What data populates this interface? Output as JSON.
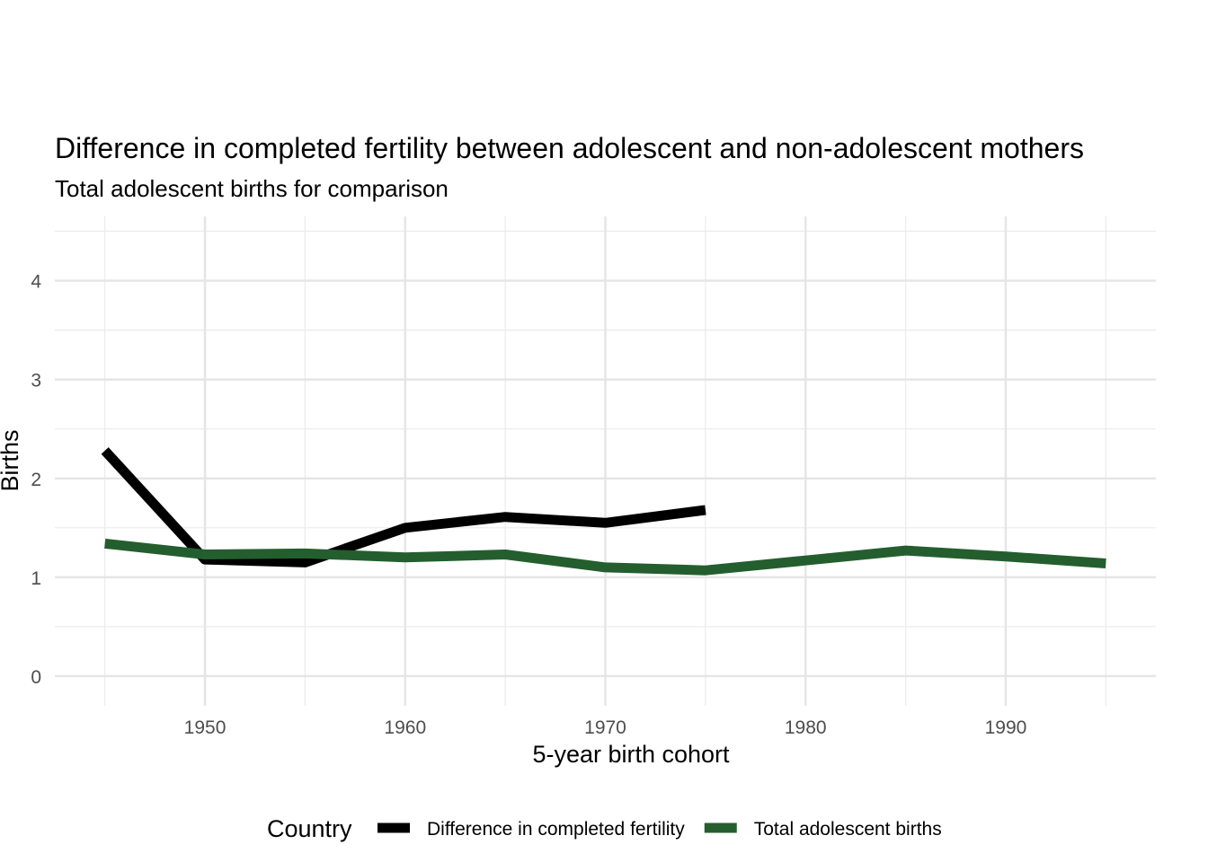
{
  "chart_data": {
    "type": "line",
    "title": "Difference in completed fertility between adolescent and non-adolescent mothers",
    "subtitle": "Total adolescent births for comparison",
    "xlabel": "5-year birth cohort",
    "ylabel": "Births",
    "xlim": [
      1942.5,
      1997.5
    ],
    "ylim": [
      -0.3,
      4.65
    ],
    "x_ticks": [
      1950,
      1960,
      1970,
      1980,
      1990
    ],
    "y_ticks": [
      0,
      1,
      2,
      3,
      4
    ],
    "grid": true,
    "legend": {
      "title": "Country",
      "position": "bottom"
    },
    "series": [
      {
        "name": "Difference in completed fertility",
        "color": "#000000",
        "x": [
          1945,
          1950,
          1955,
          1960,
          1965,
          1970,
          1975
        ],
        "y": [
          2.28,
          1.18,
          1.15,
          1.5,
          1.61,
          1.55,
          1.68
        ]
      },
      {
        "name": "Total adolescent births",
        "color": "#245e2e",
        "x": [
          1945,
          1950,
          1955,
          1960,
          1965,
          1970,
          1975,
          1980,
          1985,
          1990,
          1995
        ],
        "y": [
          1.34,
          1.23,
          1.24,
          1.2,
          1.23,
          1.1,
          1.07,
          1.17,
          1.27,
          1.21,
          1.14
        ]
      }
    ]
  }
}
